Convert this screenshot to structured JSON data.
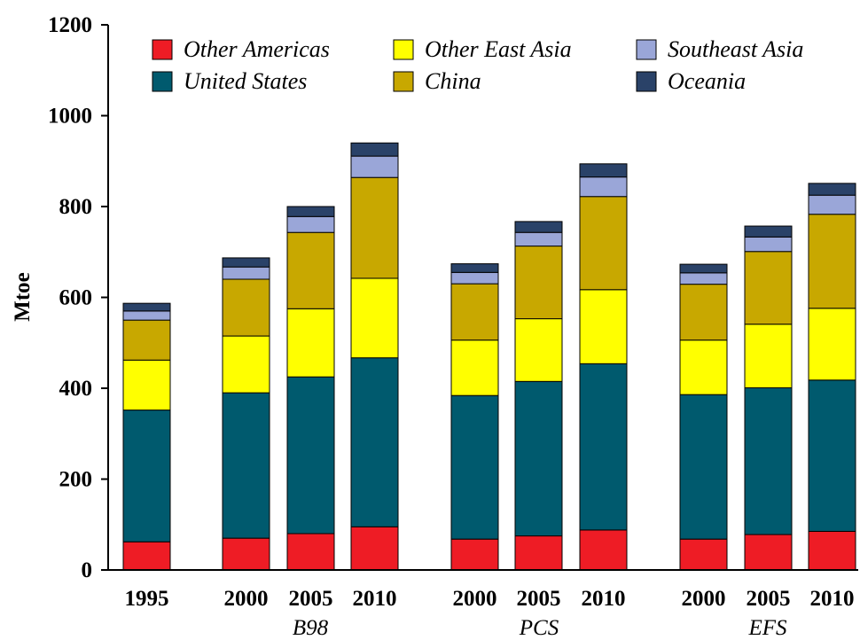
{
  "chart_data": {
    "type": "bar",
    "stacked": true,
    "ylabel": "Mtoe",
    "ylim": [
      0,
      1200
    ],
    "yticks": [
      0,
      200,
      400,
      600,
      800,
      1000,
      1200
    ],
    "grid": false,
    "legend_position": "top",
    "categories": [
      "1995",
      "2000",
      "2005",
      "2010",
      "2000",
      "2005",
      "2010",
      "2000",
      "2005",
      "2010"
    ],
    "groups": [
      {
        "label": "",
        "members": [
          0
        ]
      },
      {
        "label": "B98",
        "members": [
          1,
          2,
          3
        ]
      },
      {
        "label": "PCS",
        "members": [
          4,
          5,
          6
        ]
      },
      {
        "label": "EFS",
        "members": [
          7,
          8,
          9
        ]
      }
    ],
    "series": [
      {
        "name": "Other Americas",
        "color": "#ee1c25",
        "values": [
          62,
          70,
          80,
          95,
          68,
          75,
          88,
          68,
          78,
          85
        ]
      },
      {
        "name": "United States",
        "color": "#005a6e",
        "values": [
          290,
          320,
          345,
          372,
          316,
          340,
          366,
          318,
          323,
          333
        ]
      },
      {
        "name": "Other East Asia",
        "color": "#ffff00",
        "values": [
          110,
          125,
          150,
          175,
          122,
          138,
          163,
          120,
          140,
          158
        ]
      },
      {
        "name": "China",
        "color": "#c8a800",
        "values": [
          88,
          125,
          168,
          222,
          124,
          160,
          205,
          123,
          160,
          207
        ]
      },
      {
        "name": "Southeast Asia",
        "color": "#9aa6d8",
        "values": [
          20,
          27,
          35,
          47,
          25,
          30,
          43,
          25,
          32,
          42
        ]
      },
      {
        "name": "Oceania",
        "color": "#2a4268",
        "values": [
          17,
          20,
          22,
          29,
          19,
          24,
          29,
          19,
          24,
          26
        ]
      }
    ]
  }
}
